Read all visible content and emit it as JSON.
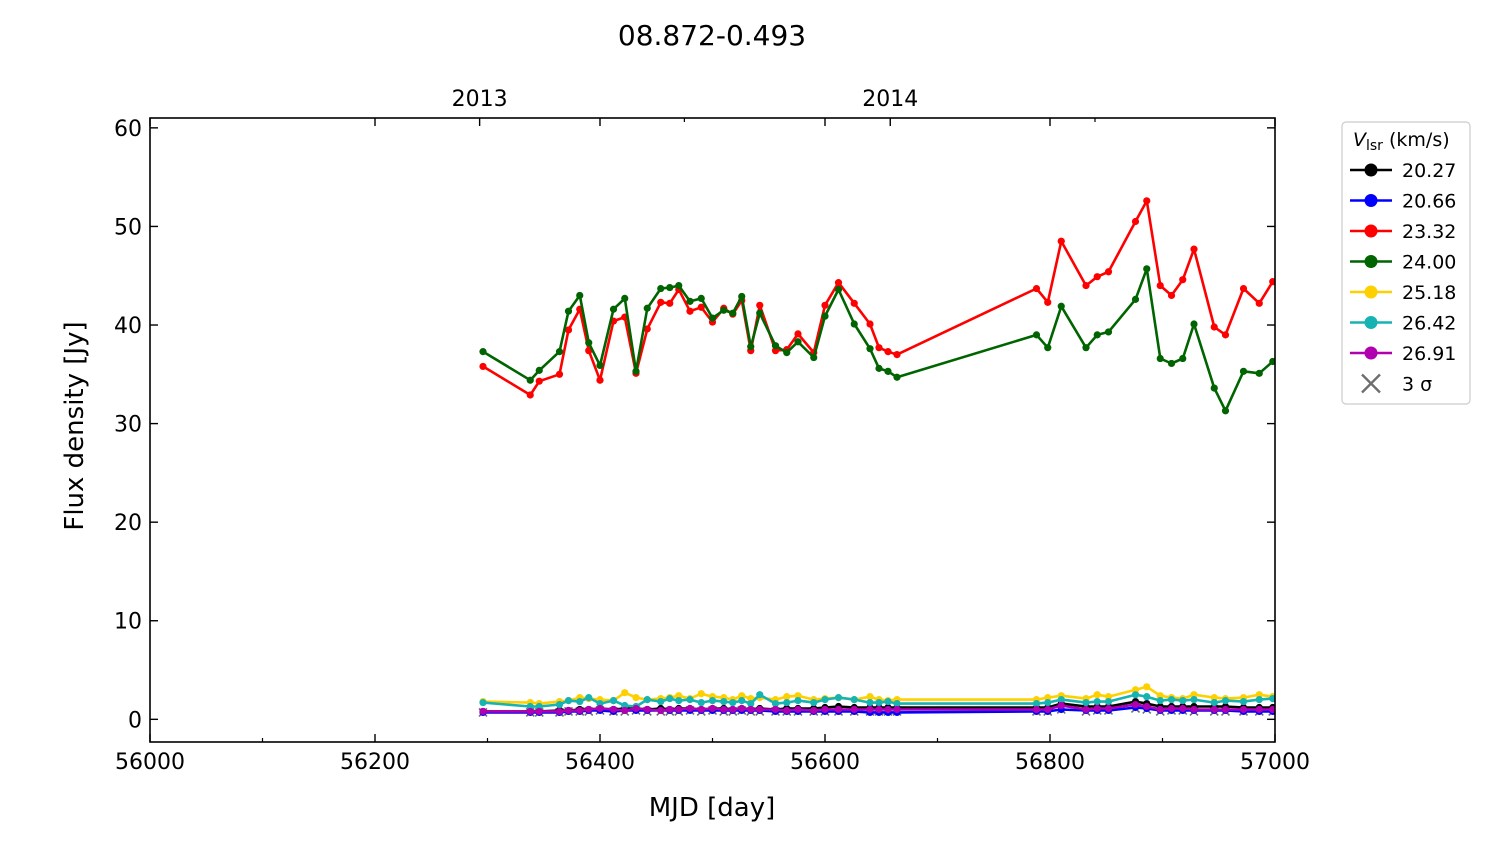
{
  "chart_data": {
    "type": "line",
    "title": "08.872-0.493",
    "xlabel": "MJD [day]",
    "ylabel": "Flux density [Jy]",
    "xlim": [
      56000,
      57000
    ],
    "ylim": [
      -2.3,
      61
    ],
    "x_ticks": [
      56000,
      56200,
      56400,
      56600,
      56800,
      57000
    ],
    "x_ticks_minor": [
      56100,
      56300,
      56500,
      56700,
      56900
    ],
    "y_ticks": [
      0,
      10,
      20,
      30,
      40,
      50,
      60
    ],
    "top_axis": {
      "ticks": [
        {
          "x": 56293,
          "label": "2013"
        },
        {
          "x": 56658,
          "label": "2014"
        }
      ],
      "minor_ticks": [
        56475,
        56840
      ]
    },
    "legend": {
      "title_main": "V",
      "title_sub": "lsr",
      "title_unit": "(km/s)",
      "placement": "outside-right",
      "sigma_label": "3 σ",
      "sigma_color": "#6e6e6e"
    },
    "series": [
      {
        "name": "20.27",
        "color": "#000000",
        "x": [
          56296,
          56338,
          56346,
          56364,
          56372,
          56382,
          56390,
          56400,
          56412,
          56422,
          56432,
          56442,
          56454,
          56462,
          56470,
          56480,
          56490,
          56500,
          56510,
          56518,
          56526,
          56534,
          56542,
          56556,
          56566,
          56576,
          56590,
          56600,
          56612,
          56626,
          56640,
          56648,
          56656,
          56664,
          56788,
          56798,
          56810,
          56832,
          56842,
          56852,
          56876,
          56886,
          56898,
          56908,
          56918,
          56928,
          56946,
          56956,
          56972,
          56986,
          56998
        ],
        "y": [
          0.8,
          0.8,
          0.8,
          0.9,
          0.9,
          1.0,
          1.0,
          1.1,
          1.0,
          1.1,
          1.1,
          1.0,
          1.1,
          1.0,
          1.1,
          1.1,
          1.0,
          1.1,
          1.1,
          1.0,
          1.1,
          1.0,
          1.1,
          1.0,
          1.1,
          1.1,
          1.1,
          1.2,
          1.3,
          1.2,
          1.2,
          1.2,
          1.2,
          1.2,
          1.2,
          1.2,
          1.6,
          1.3,
          1.3,
          1.3,
          1.8,
          1.6,
          1.3,
          1.3,
          1.3,
          1.3,
          1.3,
          1.3,
          1.2,
          1.2,
          1.2
        ]
      },
      {
        "name": "20.66",
        "color": "#0000ff",
        "x": [
          56296,
          56338,
          56346,
          56364,
          56372,
          56382,
          56390,
          56400,
          56412,
          56422,
          56432,
          56442,
          56454,
          56462,
          56470,
          56480,
          56490,
          56500,
          56510,
          56518,
          56526,
          56534,
          56542,
          56556,
          56566,
          56576,
          56590,
          56600,
          56612,
          56626,
          56640,
          56648,
          56656,
          56664,
          56788,
          56798,
          56810,
          56832,
          56842,
          56852,
          56876,
          56886,
          56898,
          56908,
          56918,
          56928,
          56946,
          56956,
          56972,
          56986,
          56998
        ],
        "y": [
          0.7,
          0.7,
          0.7,
          0.7,
          0.8,
          0.8,
          0.9,
          0.9,
          0.8,
          0.9,
          0.9,
          0.9,
          0.9,
          0.9,
          0.9,
          0.9,
          0.9,
          0.9,
          0.9,
          0.9,
          0.9,
          0.9,
          0.9,
          0.8,
          0.8,
          0.8,
          0.8,
          0.8,
          0.8,
          0.8,
          0.7,
          0.7,
          0.7,
          0.7,
          0.8,
          0.8,
          1.0,
          0.9,
          0.9,
          0.9,
          1.2,
          1.1,
          0.9,
          0.9,
          0.9,
          0.9,
          0.9,
          0.9,
          0.8,
          0.8,
          0.8
        ]
      },
      {
        "name": "23.32",
        "color": "#ff0000",
        "x": [
          56296,
          56338,
          56346,
          56364,
          56372,
          56382,
          56390,
          56400,
          56412,
          56422,
          56432,
          56442,
          56454,
          56462,
          56470,
          56480,
          56490,
          56500,
          56510,
          56518,
          56526,
          56534,
          56542,
          56556,
          56566,
          56576,
          56590,
          56600,
          56612,
          56626,
          56640,
          56648,
          56656,
          56664,
          56788,
          56798,
          56810,
          56832,
          56842,
          56852,
          56876,
          56886,
          56898,
          56908,
          56918,
          56928,
          56946,
          56956,
          56972,
          56986,
          56998
        ],
        "y": [
          35.8,
          32.9,
          34.3,
          35.0,
          39.5,
          41.6,
          37.4,
          34.4,
          40.4,
          40.8,
          35.1,
          39.6,
          42.3,
          42.2,
          43.6,
          41.4,
          41.8,
          40.3,
          41.7,
          41.1,
          42.5,
          37.4,
          42.0,
          37.4,
          37.5,
          39.1,
          37.2,
          42.0,
          44.3,
          42.2,
          40.1,
          37.7,
          37.3,
          37.0,
          43.7,
          42.3,
          48.5,
          44.0,
          44.9,
          45.4,
          50.5,
          52.6,
          44.0,
          43.0,
          44.6,
          47.7,
          39.8,
          39.0,
          43.7,
          42.2,
          44.4
        ]
      },
      {
        "name": "24.00",
        "color": "#006400",
        "x": [
          56296,
          56338,
          56346,
          56364,
          56372,
          56382,
          56390,
          56400,
          56412,
          56422,
          56432,
          56442,
          56454,
          56462,
          56470,
          56480,
          56490,
          56500,
          56510,
          56518,
          56526,
          56534,
          56542,
          56556,
          56566,
          56576,
          56590,
          56600,
          56612,
          56626,
          56640,
          56648,
          56656,
          56664,
          56788,
          56798,
          56810,
          56832,
          56842,
          56852,
          56876,
          56886,
          56898,
          56908,
          56918,
          56928,
          56946,
          56956,
          56972,
          56986,
          56998
        ],
        "y": [
          37.3,
          34.4,
          35.4,
          37.3,
          41.4,
          43.0,
          38.2,
          35.9,
          41.6,
          42.7,
          35.3,
          41.7,
          43.7,
          43.8,
          44.0,
          42.4,
          42.7,
          40.7,
          41.5,
          41.2,
          42.9,
          37.8,
          41.2,
          37.9,
          37.2,
          38.3,
          36.7,
          40.9,
          43.6,
          40.1,
          37.6,
          35.6,
          35.3,
          34.7,
          39.0,
          37.7,
          41.9,
          37.7,
          39.0,
          39.3,
          42.6,
          45.7,
          36.6,
          36.1,
          36.6,
          40.1,
          33.6,
          31.3,
          35.3,
          35.1,
          36.3
        ]
      },
      {
        "name": "25.18",
        "color": "#ffd000",
        "x": [
          56296,
          56338,
          56346,
          56364,
          56372,
          56382,
          56390,
          56400,
          56412,
          56422,
          56432,
          56442,
          56454,
          56462,
          56470,
          56480,
          56490,
          56500,
          56510,
          56518,
          56526,
          56534,
          56542,
          56556,
          56566,
          56576,
          56590,
          56600,
          56612,
          56626,
          56640,
          56648,
          56656,
          56664,
          56788,
          56798,
          56810,
          56832,
          56842,
          56852,
          56876,
          56886,
          56898,
          56908,
          56918,
          56928,
          56946,
          56956,
          56972,
          56986,
          56998
        ],
        "y": [
          1.8,
          1.7,
          1.6,
          1.8,
          1.9,
          2.2,
          2.1,
          2.0,
          1.9,
          2.7,
          2.2,
          2.0,
          2.1,
          2.2,
          2.4,
          2.1,
          2.6,
          2.3,
          2.2,
          2.0,
          2.4,
          2.1,
          2.2,
          2.0,
          2.3,
          2.4,
          2.0,
          2.1,
          2.2,
          2.0,
          2.3,
          2.0,
          1.9,
          2.0,
          2.0,
          2.2,
          2.4,
          2.1,
          2.5,
          2.3,
          3.0,
          3.3,
          2.4,
          2.2,
          2.1,
          2.5,
          2.2,
          2.1,
          2.2,
          2.5,
          2.3
        ]
      },
      {
        "name": "26.42",
        "color": "#17b3b3",
        "x": [
          56296,
          56338,
          56346,
          56364,
          56372,
          56382,
          56390,
          56400,
          56412,
          56422,
          56432,
          56442,
          56454,
          56462,
          56470,
          56480,
          56490,
          56500,
          56510,
          56518,
          56526,
          56534,
          56542,
          56556,
          56566,
          56576,
          56590,
          56600,
          56612,
          56626,
          56640,
          56648,
          56656,
          56664,
          56788,
          56798,
          56810,
          56832,
          56842,
          56852,
          56876,
          56886,
          56898,
          56908,
          56918,
          56928,
          56946,
          56956,
          56972,
          56986,
          56998
        ],
        "y": [
          1.7,
          1.3,
          1.3,
          1.5,
          1.9,
          1.8,
          2.2,
          1.6,
          1.9,
          1.4,
          1.3,
          2.0,
          1.8,
          2.1,
          1.9,
          2.0,
          1.7,
          1.9,
          1.8,
          1.7,
          1.9,
          1.6,
          2.5,
          1.6,
          1.7,
          1.9,
          1.7,
          2.0,
          2.2,
          2.0,
          1.7,
          1.7,
          1.8,
          1.6,
          1.6,
          1.7,
          2.0,
          1.7,
          1.8,
          1.8,
          2.5,
          2.3,
          1.9,
          2.0,
          1.9,
          2.0,
          1.7,
          1.9,
          1.8,
          2.0,
          2.1
        ]
      },
      {
        "name": "26.91",
        "color": "#b000b0",
        "x": [
          56296,
          56338,
          56346,
          56364,
          56372,
          56382,
          56390,
          56400,
          56412,
          56422,
          56432,
          56442,
          56454,
          56462,
          56470,
          56480,
          56490,
          56500,
          56510,
          56518,
          56526,
          56534,
          56542,
          56556,
          56566,
          56576,
          56590,
          56600,
          56612,
          56626,
          56640,
          56648,
          56656,
          56664,
          56788,
          56798,
          56810,
          56832,
          56842,
          56852,
          56876,
          56886,
          56898,
          56908,
          56918,
          56928,
          56946,
          56956,
          56972,
          56986,
          56998
        ],
        "y": [
          0.8,
          0.8,
          0.8,
          0.8,
          0.9,
          0.9,
          1.0,
          1.1,
          1.0,
          0.9,
          1.1,
          1.0,
          0.9,
          1.0,
          1.0,
          1.1,
          1.0,
          1.1,
          1.0,
          1.0,
          1.1,
          1.0,
          1.0,
          1.0,
          0.9,
          1.0,
          0.9,
          1.0,
          1.0,
          1.0,
          1.0,
          1.0,
          1.0,
          1.0,
          1.0,
          1.0,
          1.4,
          1.0,
          1.1,
          1.1,
          1.5,
          1.3,
          1.0,
          1.1,
          1.1,
          1.0,
          1.0,
          1.0,
          1.0,
          1.0,
          1.0
        ]
      }
    ],
    "sigma3": {
      "x": [
        56296,
        56338,
        56346,
        56364,
        56372,
        56382,
        56390,
        56400,
        56412,
        56422,
        56432,
        56442,
        56454,
        56462,
        56470,
        56480,
        56490,
        56500,
        56510,
        56518,
        56526,
        56534,
        56542,
        56556,
        56566,
        56576,
        56590,
        56600,
        56612,
        56626,
        56640,
        56648,
        56656,
        56664,
        56788,
        56798,
        56810,
        56832,
        56842,
        56852,
        56876,
        56886,
        56898,
        56908,
        56918,
        56928,
        56946,
        56956,
        56972,
        56986,
        56998
      ],
      "y": [
        0.7,
        0.7,
        0.7,
        0.7,
        0.8,
        0.8,
        0.8,
        0.9,
        0.8,
        0.8,
        0.9,
        0.8,
        0.8,
        0.8,
        0.8,
        0.9,
        0.8,
        0.9,
        0.8,
        0.8,
        0.9,
        0.8,
        0.8,
        0.8,
        0.8,
        0.8,
        0.8,
        0.8,
        0.8,
        0.8,
        0.8,
        0.8,
        0.8,
        0.8,
        0.8,
        0.8,
        1.0,
        0.8,
        0.9,
        0.9,
        1.1,
        1.0,
        0.8,
        0.9,
        0.9,
        0.8,
        0.8,
        0.8,
        0.8,
        0.8,
        0.8
      ]
    }
  }
}
